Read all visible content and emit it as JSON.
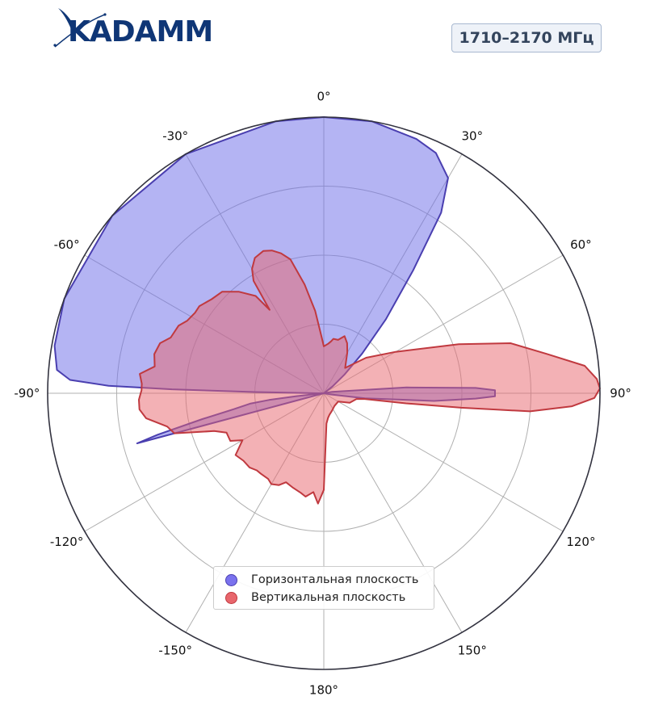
{
  "logo": {
    "text": "KADAMM",
    "color": "#0f3676"
  },
  "badge": {
    "text": "1710–2170 МГц"
  },
  "chart_data": {
    "type": "polar-area",
    "angle_labels": [
      "0°",
      "30°",
      "60°",
      "90°",
      "120°",
      "150°",
      "180°",
      "-150°",
      "-120°",
      "-90°",
      "-60°",
      "-30°"
    ],
    "r_max": 1.0,
    "grid": true,
    "legend_position": "bottom-center",
    "series": [
      {
        "name": "Горизонтальная плоскость",
        "color": "#6f6fe8",
        "stroke": "#4a3fb0",
        "points": [
          [
            -105,
            0.7
          ],
          [
            -104,
            0.62
          ],
          [
            -102,
            0.45
          ],
          [
            -100,
            0.33
          ],
          [
            -98,
            0.27
          ],
          [
            -97,
            0.2
          ],
          [
            -96,
            0.1
          ],
          [
            -95,
            0.02
          ],
          [
            -90,
            0.0
          ],
          [
            -90,
            0.02
          ],
          [
            -89,
            0.25
          ],
          [
            -88.5,
            0.55
          ],
          [
            -88,
            0.78
          ],
          [
            -87,
            0.92
          ],
          [
            -85,
            0.97
          ],
          [
            -80,
            0.99
          ],
          [
            -70,
            1.0
          ],
          [
            -50,
            1.0
          ],
          [
            -30,
            1.0
          ],
          [
            -10,
            1.0
          ],
          [
            0,
            1.0
          ],
          [
            10,
            1.0
          ],
          [
            20,
            0.98
          ],
          [
            25,
            0.96
          ],
          [
            30,
            0.9
          ],
          [
            33,
            0.78
          ],
          [
            36,
            0.55
          ],
          [
            40,
            0.35
          ],
          [
            44,
            0.2
          ],
          [
            48,
            0.1
          ],
          [
            52,
            0.04
          ],
          [
            60,
            0.0
          ],
          [
            80,
            0.03
          ],
          [
            86,
            0.3
          ],
          [
            88,
            0.55
          ],
          [
            89,
            0.62
          ],
          [
            91,
            0.62
          ],
          [
            92,
            0.55
          ],
          [
            94,
            0.4
          ],
          [
            97,
            0.15
          ],
          [
            100,
            0.02
          ],
          [
            110,
            0.0
          ]
        ]
      },
      {
        "name": "Вертикальная плоскость",
        "color": "#e8757a",
        "stroke": "#c0393f",
        "points": [
          [
            0,
            0.17
          ],
          [
            5,
            0.18
          ],
          [
            8,
            0.19
          ],
          [
            10,
            0.2
          ],
          [
            15,
            0.2
          ],
          [
            20,
            0.22
          ],
          [
            25,
            0.2
          ],
          [
            30,
            0.17
          ],
          [
            40,
            0.12
          ],
          [
            50,
            0.2
          ],
          [
            60,
            0.3
          ],
          [
            70,
            0.52
          ],
          [
            75,
            0.7
          ],
          [
            80,
            0.82
          ],
          [
            84,
            0.95
          ],
          [
            87,
            0.99
          ],
          [
            89,
            1.0
          ],
          [
            91,
            0.98
          ],
          [
            93,
            0.9
          ],
          [
            95,
            0.75
          ],
          [
            96,
            0.5
          ],
          [
            97,
            0.3
          ],
          [
            98,
            0.15
          ],
          [
            100,
            0.12
          ],
          [
            110,
            0.1
          ],
          [
            120,
            0.06
          ],
          [
            140,
            0.06
          ],
          [
            155,
            0.07
          ],
          [
            165,
            0.08
          ],
          [
            170,
            0.09
          ],
          [
            175,
            0.11
          ],
          [
            180,
            0.35
          ],
          [
            183,
            0.4
          ],
          [
            186,
            0.36
          ],
          [
            190,
            0.38
          ],
          [
            193,
            0.37
          ],
          [
            198,
            0.36
          ],
          [
            203,
            0.35
          ],
          [
            206,
            0.37
          ],
          [
            210,
            0.38
          ],
          [
            213,
            0.37
          ],
          [
            218,
            0.37
          ],
          [
            221,
            0.37
          ],
          [
            225,
            0.38
          ],
          [
            230,
            0.38
          ],
          [
            235,
            0.39
          ],
          [
            240,
            0.34
          ],
          [
            243,
            0.38
          ],
          [
            248,
            0.38
          ],
          [
            251,
            0.42
          ],
          [
            255,
            0.56
          ],
          [
            258,
            0.58
          ],
          [
            262,
            0.65
          ],
          [
            265,
            0.67
          ],
          [
            268,
            0.67
          ],
          [
            271,
            0.66
          ],
          [
            273,
            0.66
          ],
          [
            276,
            0.67
          ],
          [
            279,
            0.62
          ],
          [
            283,
            0.63
          ],
          [
            287,
            0.62
          ],
          [
            290,
            0.59
          ],
          [
            295,
            0.58
          ],
          [
            298,
            0.56
          ],
          [
            302,
            0.55
          ],
          [
            305,
            0.55
          ],
          [
            310,
            0.53
          ],
          [
            315,
            0.52
          ],
          [
            320,
            0.48
          ],
          [
            325,
            0.43
          ],
          [
            327,
            0.36
          ],
          [
            328,
            0.48
          ],
          [
            330,
            0.52
          ],
          [
            333,
            0.55
          ],
          [
            337,
            0.56
          ],
          [
            340,
            0.55
          ],
          [
            343,
            0.53
          ],
          [
            346,
            0.5
          ],
          [
            350,
            0.4
          ],
          [
            354,
            0.3
          ],
          [
            358,
            0.2
          ],
          [
            360,
            0.17
          ]
        ]
      }
    ]
  },
  "legend": {
    "horizontal_label": "Горизонтальная плоскость",
    "vertical_label": "Вертикальная плоскость"
  }
}
